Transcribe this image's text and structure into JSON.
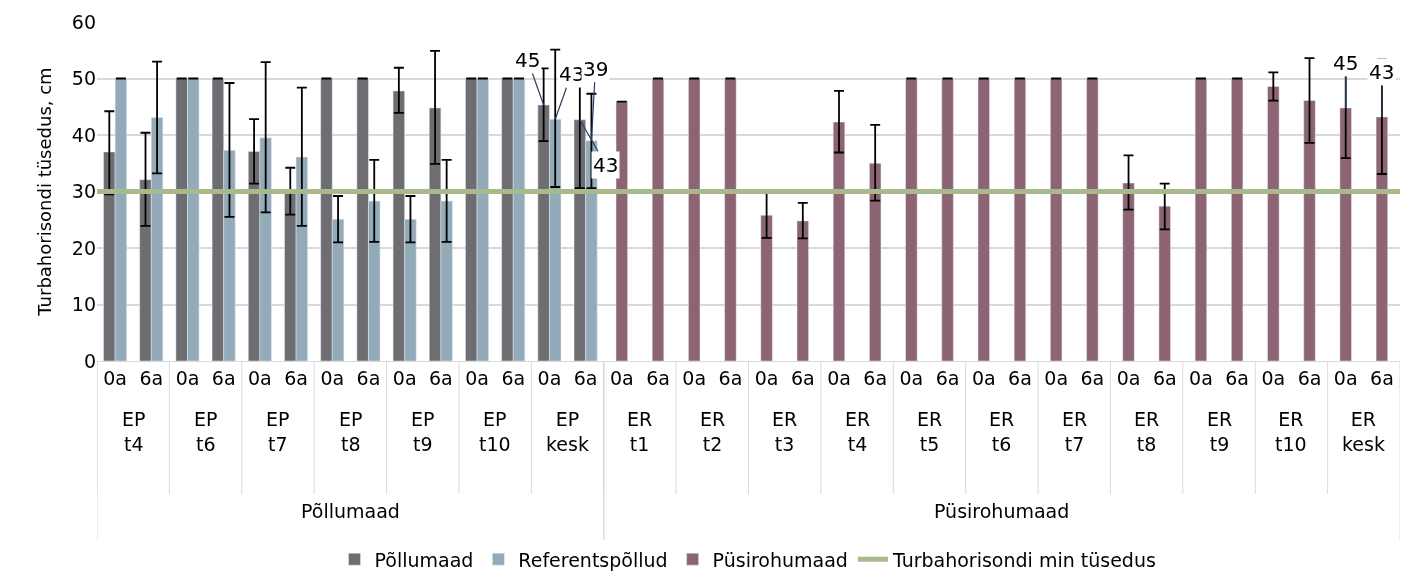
{
  "chart_data": {
    "type": "bar",
    "ylabel": "Turbahorisondi tüsedus, cm",
    "categories": [
      "0a",
      "6a",
      "0a",
      "6a",
      "0a",
      "6a",
      "0a",
      "6a",
      "0a",
      "6a",
      "0a",
      "6a",
      "0a",
      "6a",
      "0a",
      "6a",
      "0a",
      "6a",
      "0a",
      "6a",
      "0a",
      "6a",
      "0a",
      "6a",
      "0a",
      "6a",
      "0a",
      "6a",
      "0a",
      "6a",
      "0a",
      "6a",
      "0a",
      "6a",
      "0a",
      "6a"
    ],
    "annotations": [
      "EP t4",
      "EP t6",
      "EP t7",
      "EP t8",
      "EP t9",
      "EP t10",
      "EP kesk",
      "ER t1",
      "ER t2",
      "ER t3",
      "ER t4",
      "ER t5",
      "ER t6",
      "ER t7",
      "ER t8",
      "ER t9",
      "ER t10",
      "ER kesk",
      "Põllumaad",
      "Püsirohumaad"
    ],
    "series": [
      {
        "name": "Põllumaad",
        "color": "#6e6d72",
        "values": [
          37,
          32.1,
          50,
          50,
          37.1,
          30,
          50,
          50,
          47.8,
          44.8,
          50,
          50,
          45.3,
          42.7,
          null,
          null,
          null,
          null,
          null,
          null,
          null,
          null,
          null,
          null,
          null,
          null,
          null,
          null,
          null,
          null,
          null,
          null,
          null,
          null,
          null,
          null
        ],
        "errors": [
          [
            29.5,
            44.2
          ],
          [
            23.9,
            40.4
          ],
          0,
          0,
          [
            31.4,
            42.8
          ],
          [
            25.9,
            34.2
          ],
          0,
          0,
          [
            43.9,
            51.9
          ],
          [
            34.9,
            54.9
          ],
          0,
          0,
          [
            38.9,
            51.8
          ],
          [
            30.6,
            52.1
          ],
          null,
          null,
          null,
          null,
          null,
          null,
          null,
          null,
          null,
          null,
          null,
          null,
          null,
          null,
          null,
          null,
          null,
          null,
          null,
          null,
          null,
          null
        ],
        "value_labels": [
          null,
          null,
          null,
          null,
          null,
          null,
          null,
          null,
          null,
          null,
          null,
          null,
          "45",
          "43",
          null,
          null,
          null,
          null,
          null,
          null,
          null,
          null,
          null,
          null,
          null,
          null,
          null,
          null,
          null,
          null,
          null,
          null,
          null,
          null,
          null,
          null
        ]
      },
      {
        "name": "Referentspõllud",
        "color": "#93aab8",
        "values": [
          50,
          43.1,
          50,
          37.3,
          39.5,
          36.1,
          25.1,
          28.3,
          25.1,
          28.3,
          50,
          50,
          42.8,
          39,
          null,
          null,
          null,
          null,
          null,
          null,
          null,
          null,
          null,
          null,
          null,
          null,
          null,
          null,
          null,
          null,
          null,
          null,
          null,
          null,
          null,
          null
        ],
        "errors": [
          0,
          [
            33.2,
            53
          ],
          0,
          [
            25.5,
            49.2
          ],
          [
            26.3,
            52.9
          ],
          [
            23.9,
            48.4
          ],
          [
            21,
            29.2
          ],
          [
            21.1,
            35.6
          ],
          [
            21,
            29.2
          ],
          [
            21.1,
            35.6
          ],
          0,
          0,
          [
            30.8,
            55.1
          ],
          [
            30.6,
            47.3
          ],
          null,
          null,
          null,
          null,
          null,
          null,
          null,
          null,
          null,
          null,
          null,
          null,
          null,
          null,
          null,
          null,
          null,
          null,
          null,
          null,
          null,
          null
        ],
        "value_labels": [
          null,
          null,
          null,
          null,
          null,
          null,
          null,
          null,
          null,
          null,
          null,
          null,
          "43",
          "39",
          null,
          null,
          null,
          null,
          null,
          null,
          null,
          null,
          null,
          null,
          null,
          null,
          null,
          null,
          null,
          null,
          null,
          null,
          null,
          null,
          null,
          null
        ]
      },
      {
        "name": "Püsirohumaad",
        "color": "#8d6473",
        "values": [
          null,
          null,
          null,
          null,
          null,
          null,
          null,
          null,
          null,
          null,
          null,
          null,
          null,
          null,
          45.9,
          50,
          50,
          50,
          25.8,
          24.8,
          42.3,
          35,
          50,
          50,
          50,
          50,
          50,
          50,
          31.5,
          27.4,
          50,
          50,
          48.6,
          46.1,
          44.8,
          43.2
        ],
        "errors": [
          null,
          null,
          null,
          null,
          null,
          null,
          null,
          null,
          null,
          null,
          null,
          null,
          null,
          null,
          null,
          0,
          0,
          0,
          [
            21.8,
            29.8
          ],
          [
            21.7,
            28
          ],
          [
            36.9,
            47.8
          ],
          [
            28.4,
            41.8
          ],
          0,
          0,
          0,
          0,
          0,
          0,
          [
            26.8,
            36.4
          ],
          [
            23.3,
            31.4
          ],
          0,
          0,
          [
            46.1,
            51.1
          ],
          [
            38.6,
            53.6
          ],
          [
            35.9,
            53.6
          ],
          [
            33.1,
            53.4
          ]
        ],
        "value_labels": [
          null,
          null,
          null,
          null,
          null,
          null,
          null,
          null,
          null,
          null,
          null,
          null,
          null,
          null,
          null,
          null,
          null,
          null,
          null,
          null,
          null,
          null,
          null,
          null,
          null,
          null,
          null,
          null,
          null,
          null,
          null,
          null,
          null,
          null,
          "45",
          "43"
        ]
      }
    ],
    "ref_lines": [
      {
        "axis": "y",
        "value": 30,
        "label": "Turbahorisondi min tüsedus",
        "color": "#a8b98b"
      }
    ],
    "ylim": [
      0,
      60
    ],
    "yticks": [
      0,
      10,
      20,
      30,
      40,
      50,
      60
    ],
    "grid": "y",
    "legend": "bottom"
  }
}
